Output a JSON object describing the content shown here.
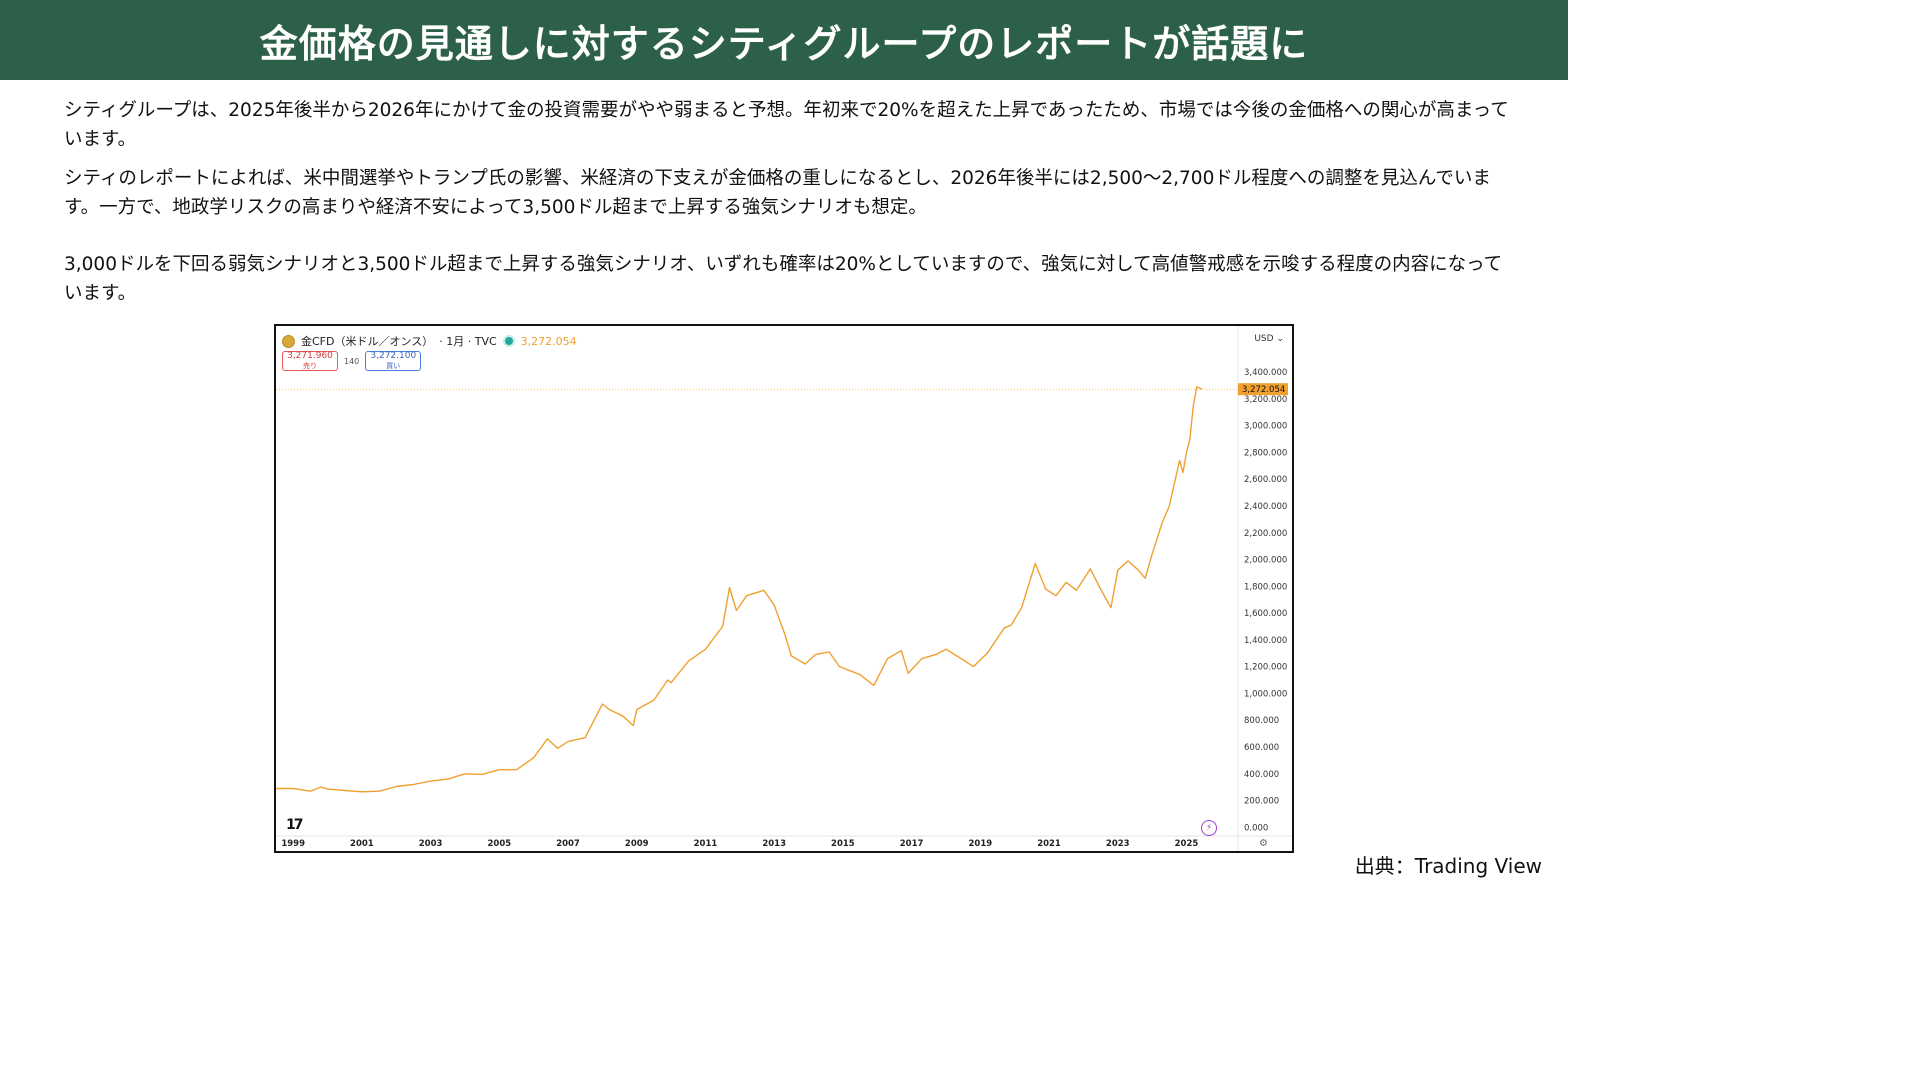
{
  "header": {
    "title": "金価格の見通しに対するシティグループのレポートが話題に"
  },
  "paragraphs": [
    "シティグループは、2025年後半から2026年にかけて金の投資需要がやや弱まると予想。年初来で20%を超えた上昇であったため、市場では今後の金価格への関心が高まっています。",
    "シティのレポートによれば、米中間選挙やトランプ氏の影響、米経済の下支えが金価格の重しになるとし、2026年後半には2,500～2,700ドル程度への調整を見込んでいます。一方で、地政学リスクの高まりや経済不安によって3,500ドル超まで上昇する強気シナリオも想定。",
    "3,000ドルを下回る弱気シナリオと3,500ドル超まで上昇する強気シナリオ、いずれも確率は20%としていますので、強気に対して高値警戒感を示唆する程度の内容になっています。"
  ],
  "chart_widget": {
    "symbol": "金CFD（米ドル／オンス）",
    "interval": "· 1月 · TVC",
    "last_price": "3,272.054",
    "sell_price": "3,271.960",
    "sell_label": "売り",
    "spread": "140",
    "buy_price": "3,272.100",
    "buy_label": "買い",
    "currency": "USD",
    "currency_caret": "⌄",
    "tv_logo": "17",
    "bolt_icon": "⚡",
    "gear_icon": "⚙",
    "line_color": "#f0a030"
  },
  "chart_data": {
    "type": "line",
    "title": "",
    "xlabel": "",
    "ylabel": "",
    "x_range": [
      1998.5,
      2026.5
    ],
    "ylim": [
      -50,
      3550
    ],
    "y_ticks": [
      0,
      200,
      400,
      600,
      800,
      1000,
      1200,
      1400,
      1600,
      1800,
      2000,
      2200,
      2400,
      2600,
      2800,
      3000,
      3200,
      3400
    ],
    "y_tick_labels": [
      "0.000",
      "200.000",
      "400.000",
      "600.000",
      "800.000",
      "1,000.000",
      "1,200.000",
      "1,400.000",
      "1,600.000",
      "1,800.000",
      "2,000.000",
      "2,200.000",
      "2,400.000",
      "2,600.000",
      "2,800.000",
      "3,000.000",
      "3,200.000",
      "3,400.000"
    ],
    "x_ticks": [
      1999,
      2001,
      2003,
      2005,
      2007,
      2009,
      2011,
      2013,
      2015,
      2017,
      2019,
      2021,
      2023,
      2025
    ],
    "x_tick_labels": [
      "1999",
      "2001",
      "2003",
      "2005",
      "2007",
      "2009",
      "2011",
      "2013",
      "2015",
      "2017",
      "2019",
      "2021",
      "2023",
      "2025"
    ],
    "last_value": 3272.054,
    "last_value_label": "3,272.054",
    "series": [
      {
        "x": [
          1998.5,
          1999.0,
          1999.5,
          1999.8,
          2000.0,
          2000.5,
          2001.0,
          2001.5,
          2002.0,
          2002.5,
          2003.0,
          2003.5,
          2004.0,
          2004.5,
          2005.0,
          2005.5,
          2006.0,
          2006.4,
          2006.7,
          2007.0,
          2007.5,
          2008.0,
          2008.2,
          2008.6,
          2008.9,
          2009.0,
          2009.5,
          2009.9,
          2010.0,
          2010.5,
          2011.0,
          2011.5,
          2011.7,
          2011.9,
          2012.2,
          2012.7,
          2013.0,
          2013.3,
          2013.5,
          2013.9,
          2014.2,
          2014.6,
          2014.9,
          2015.5,
          2015.9,
          2016.3,
          2016.7,
          2016.9,
          2017.3,
          2017.7,
          2018.0,
          2018.5,
          2018.8,
          2019.2,
          2019.7,
          2019.9,
          2020.2,
          2020.6,
          2020.9,
          2021.2,
          2021.5,
          2021.8,
          2022.2,
          2022.5,
          2022.8,
          2023.0,
          2023.3,
          2023.6,
          2023.8,
          2024.0,
          2024.3,
          2024.5,
          2024.8,
          2024.9,
          2025.0,
          2025.1,
          2025.2,
          2025.3,
          2025.45
        ],
        "y": [
          290,
          290,
          270,
          300,
          285,
          275,
          265,
          270,
          305,
          320,
          345,
          360,
          400,
          395,
          430,
          430,
          520,
          660,
          590,
          640,
          670,
          920,
          880,
          830,
          760,
          880,
          950,
          1100,
          1080,
          1240,
          1330,
          1500,
          1790,
          1620,
          1730,
          1770,
          1660,
          1450,
          1280,
          1220,
          1290,
          1310,
          1200,
          1140,
          1060,
          1260,
          1320,
          1150,
          1260,
          1290,
          1330,
          1250,
          1200,
          1300,
          1490,
          1510,
          1640,
          1970,
          1780,
          1730,
          1830,
          1770,
          1930,
          1780,
          1640,
          1920,
          1990,
          1920,
          1860,
          2040,
          2280,
          2400,
          2740,
          2650,
          2800,
          2900,
          3150,
          3290,
          3272
        ]
      }
    ],
    "grid": false,
    "legend": "none"
  },
  "source": "出典：Trading View"
}
